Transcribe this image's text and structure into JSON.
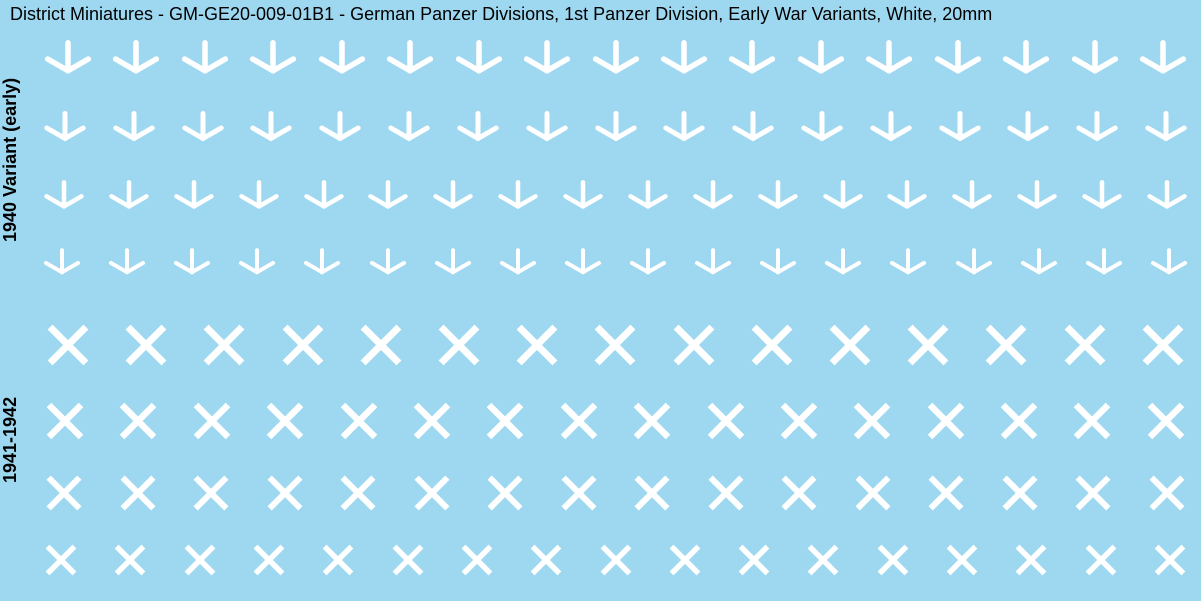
{
  "title": "District Miniatures - GM-GE20-009-01B1 - German Panzer Divisions, 1st Panzer Division, Early War Variants, White, 20mm",
  "labels": {
    "top": "1940 Variant (early)",
    "bottom": "1941-1942"
  },
  "colors": {
    "background": "#9ed8f0",
    "symbol": "#ffffff",
    "text": "#000000"
  },
  "sections": {
    "top": {
      "symbol_type": "tripod",
      "rows": [
        {
          "count": 17,
          "size": 56,
          "stroke": 5.5
        },
        {
          "count": 17,
          "size": 50,
          "stroke": 5
        },
        {
          "count": 18,
          "size": 48,
          "stroke": 4.5
        },
        {
          "count": 18,
          "size": 44,
          "stroke": 4
        }
      ]
    },
    "bottom": {
      "symbol_type": "cross",
      "rows": [
        {
          "count": 15,
          "size": 56,
          "stroke": 7
        },
        {
          "count": 16,
          "size": 50,
          "stroke": 6.5
        },
        {
          "count": 16,
          "size": 48,
          "stroke": 6
        },
        {
          "count": 17,
          "size": 42,
          "stroke": 5.5
        }
      ]
    }
  }
}
